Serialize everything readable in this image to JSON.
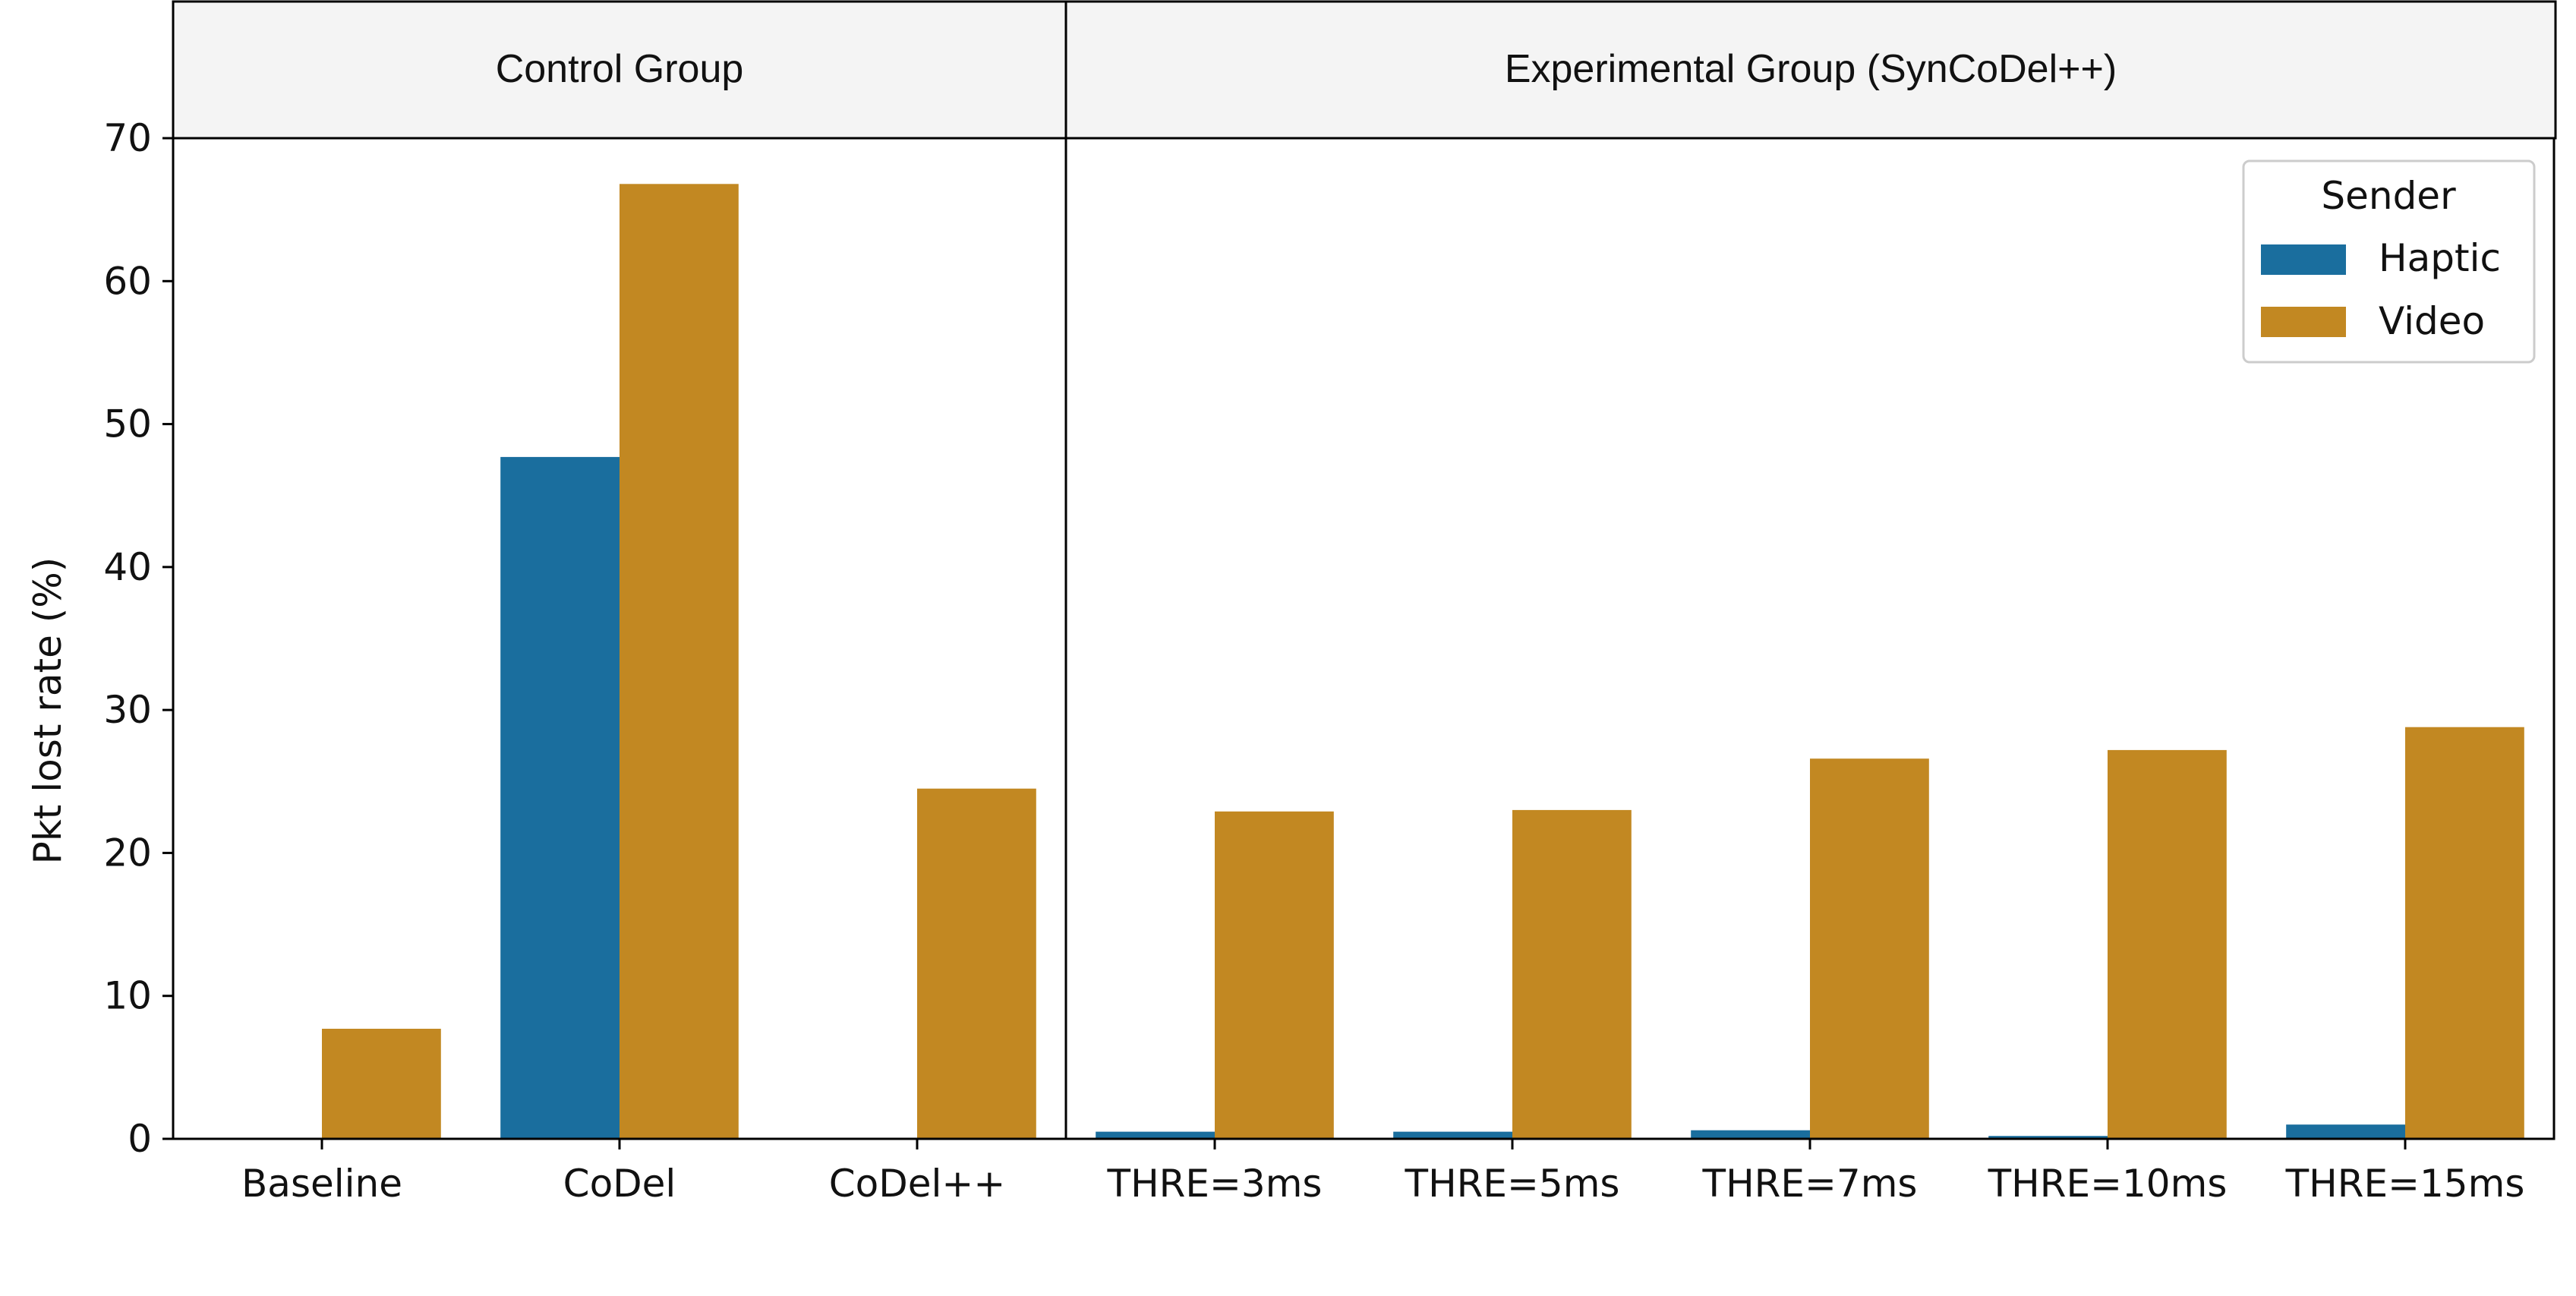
{
  "chart_data": {
    "type": "bar",
    "ylabel": "Pkt lost rate (%)",
    "ylim": [
      0,
      70
    ],
    "yticks": [
      0,
      10,
      20,
      30,
      40,
      50,
      60,
      70
    ],
    "grid": false,
    "legend": {
      "title": "Sender",
      "placement": "top-right"
    },
    "colors": {
      "Haptic": "#1a6e9e",
      "Video": "#c28822"
    },
    "panels": [
      {
        "title": "Control Group",
        "categories": [
          "Baseline",
          "CoDel",
          "CoDel++"
        ],
        "series": [
          {
            "name": "Haptic",
            "values": [
              0,
              47.7,
              0
            ]
          },
          {
            "name": "Video",
            "values": [
              7.7,
              66.8,
              24.5
            ]
          }
        ]
      },
      {
        "title": "Experimental Group (SynCoDel++)",
        "categories": [
          "THRE=3ms",
          "THRE=5ms",
          "THRE=7ms",
          "THRE=10ms",
          "THRE=15ms"
        ],
        "series": [
          {
            "name": "Haptic",
            "values": [
              0.5,
              0.5,
              0.6,
              0.2,
              1.0
            ]
          },
          {
            "name": "Video",
            "values": [
              22.9,
              23.0,
              26.6,
              27.2,
              28.8
            ]
          }
        ]
      }
    ]
  }
}
